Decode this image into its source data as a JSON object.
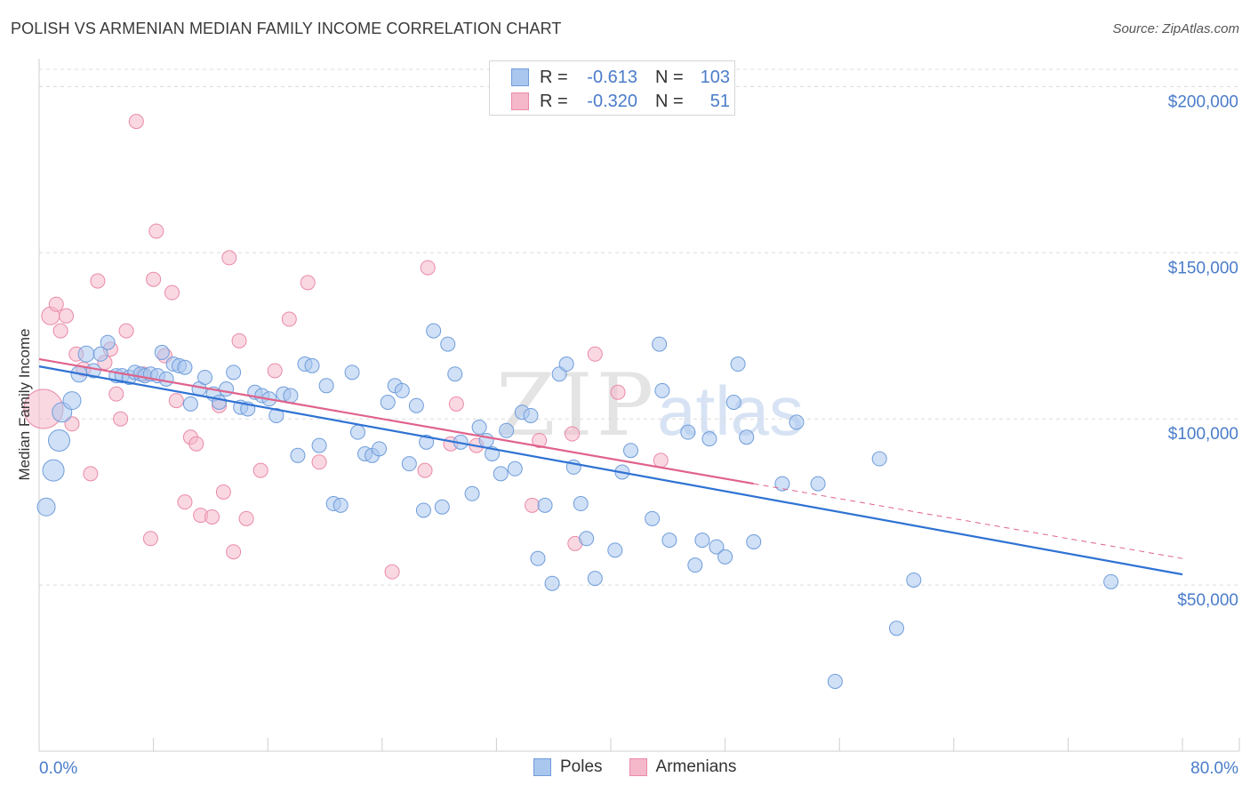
{
  "title": "POLISH VS ARMENIAN MEDIAN FAMILY INCOME CORRELATION CHART",
  "source": "Source: ZipAtlas.com",
  "watermark": {
    "zip": "ZIP",
    "atlas": "atlas"
  },
  "legend": {
    "rows": [
      {
        "r_label": "R =",
        "r_value": "-0.613",
        "n_label": "N =",
        "n_value": "103"
      },
      {
        "r_label": "R =",
        "r_value": "-0.320",
        "n_label": "N =",
        "n_value": "51"
      }
    ]
  },
  "bottom_legend": {
    "poles": "Poles",
    "armenians": "Armenians"
  },
  "colors": {
    "poles_fill": "#a9c6ee",
    "poles_stroke": "#6f9ddb",
    "poles_line": "#2f72d4",
    "armenians_fill": "#f5b8cb",
    "armenians_stroke": "#e98aa8",
    "armenians_line": "#e0628b",
    "tick_label": "#4a7cc9",
    "grid": "#dcdcdc"
  },
  "chart_data": {
    "type": "scatter",
    "title": "POLISH VS ARMENIAN MEDIAN FAMILY INCOME CORRELATION CHART",
    "xlabel": "",
    "ylabel": "Median Family Income",
    "xlim": [
      0,
      80
    ],
    "ylim": [
      0,
      210000
    ],
    "x_tick_labels": [
      "0.0%",
      "80.0%"
    ],
    "y_ticks": [
      50000,
      100000,
      150000,
      200000
    ],
    "y_tick_labels": [
      "$50,000",
      "$100,000",
      "$150,000",
      "$200,000"
    ],
    "grid": "horizontal dashed",
    "legend_position": "top-center",
    "series": [
      {
        "name": "Poles",
        "trend": {
          "x": [
            0,
            80
          ],
          "y": [
            115800,
            53200
          ]
        },
        "points": [
          {
            "x": 0.5,
            "y": 73500,
            "s": 10
          },
          {
            "x": 1.0,
            "y": 84500,
            "s": 12
          },
          {
            "x": 1.4,
            "y": 93500,
            "s": 12
          },
          {
            "x": 1.6,
            "y": 102000,
            "s": 11
          },
          {
            "x": 2.3,
            "y": 105500,
            "s": 10
          },
          {
            "x": 2.8,
            "y": 113500,
            "s": 9
          },
          {
            "x": 3.3,
            "y": 119500,
            "s": 9
          },
          {
            "x": 3.8,
            "y": 114500,
            "s": 8
          },
          {
            "x": 4.3,
            "y": 119500,
            "s": 8
          },
          {
            "x": 4.8,
            "y": 123000,
            "s": 8
          },
          {
            "x": 5.4,
            "y": 113000,
            "s": 8
          },
          {
            "x": 5.8,
            "y": 113000,
            "s": 8
          },
          {
            "x": 6.3,
            "y": 112500,
            "s": 8
          },
          {
            "x": 6.7,
            "y": 114000,
            "s": 8
          },
          {
            "x": 7.1,
            "y": 113500,
            "s": 8
          },
          {
            "x": 7.4,
            "y": 113000,
            "s": 8
          },
          {
            "x": 7.8,
            "y": 113500,
            "s": 8
          },
          {
            "x": 8.3,
            "y": 113000,
            "s": 8
          },
          {
            "x": 8.6,
            "y": 120000,
            "s": 8
          },
          {
            "x": 8.9,
            "y": 112000,
            "s": 8
          },
          {
            "x": 9.4,
            "y": 116500,
            "s": 8
          },
          {
            "x": 9.8,
            "y": 116000,
            "s": 8
          },
          {
            "x": 10.2,
            "y": 115500,
            "s": 8
          },
          {
            "x": 10.6,
            "y": 104500,
            "s": 8
          },
          {
            "x": 11.2,
            "y": 109000,
            "s": 8
          },
          {
            "x": 11.6,
            "y": 112500,
            "s": 8
          },
          {
            "x": 12.2,
            "y": 107500,
            "s": 8
          },
          {
            "x": 12.6,
            "y": 105000,
            "s": 8
          },
          {
            "x": 13.1,
            "y": 109000,
            "s": 8
          },
          {
            "x": 13.6,
            "y": 114000,
            "s": 8
          },
          {
            "x": 14.1,
            "y": 103500,
            "s": 8
          },
          {
            "x": 14.6,
            "y": 103000,
            "s": 8
          },
          {
            "x": 15.1,
            "y": 108000,
            "s": 8
          },
          {
            "x": 15.6,
            "y": 107000,
            "s": 8
          },
          {
            "x": 16.1,
            "y": 106000,
            "s": 8
          },
          {
            "x": 16.6,
            "y": 101000,
            "s": 8
          },
          {
            "x": 17.1,
            "y": 107500,
            "s": 8
          },
          {
            "x": 17.6,
            "y": 107000,
            "s": 8
          },
          {
            "x": 18.1,
            "y": 89000,
            "s": 8
          },
          {
            "x": 18.6,
            "y": 116500,
            "s": 8
          },
          {
            "x": 19.1,
            "y": 116000,
            "s": 8
          },
          {
            "x": 19.6,
            "y": 92000,
            "s": 8
          },
          {
            "x": 20.1,
            "y": 110000,
            "s": 8
          },
          {
            "x": 20.6,
            "y": 74500,
            "s": 8
          },
          {
            "x": 21.1,
            "y": 74000,
            "s": 8
          },
          {
            "x": 21.9,
            "y": 114000,
            "s": 8
          },
          {
            "x": 22.3,
            "y": 96000,
            "s": 8
          },
          {
            "x": 22.8,
            "y": 89500,
            "s": 8
          },
          {
            "x": 23.3,
            "y": 89000,
            "s": 8
          },
          {
            "x": 23.8,
            "y": 91000,
            "s": 8
          },
          {
            "x": 24.4,
            "y": 105000,
            "s": 8
          },
          {
            "x": 24.9,
            "y": 110000,
            "s": 8
          },
          {
            "x": 25.4,
            "y": 108500,
            "s": 8
          },
          {
            "x": 25.9,
            "y": 86500,
            "s": 8
          },
          {
            "x": 26.4,
            "y": 104000,
            "s": 8
          },
          {
            "x": 26.9,
            "y": 72500,
            "s": 8
          },
          {
            "x": 27.1,
            "y": 93000,
            "s": 8
          },
          {
            "x": 27.6,
            "y": 126500,
            "s": 8
          },
          {
            "x": 28.2,
            "y": 73500,
            "s": 8
          },
          {
            "x": 28.6,
            "y": 122500,
            "s": 8
          },
          {
            "x": 29.1,
            "y": 113500,
            "s": 8
          },
          {
            "x": 29.5,
            "y": 93000,
            "s": 8
          },
          {
            "x": 30.3,
            "y": 77500,
            "s": 8
          },
          {
            "x": 30.8,
            "y": 97500,
            "s": 8
          },
          {
            "x": 31.3,
            "y": 93500,
            "s": 8
          },
          {
            "x": 31.7,
            "y": 89500,
            "s": 8
          },
          {
            "x": 32.3,
            "y": 83500,
            "s": 8
          },
          {
            "x": 32.7,
            "y": 96500,
            "s": 8
          },
          {
            "x": 33.3,
            "y": 85000,
            "s": 8
          },
          {
            "x": 33.8,
            "y": 102000,
            "s": 8
          },
          {
            "x": 34.4,
            "y": 101000,
            "s": 8
          },
          {
            "x": 34.9,
            "y": 58000,
            "s": 8
          },
          {
            "x": 35.4,
            "y": 74000,
            "s": 8
          },
          {
            "x": 35.9,
            "y": 50500,
            "s": 8
          },
          {
            "x": 36.4,
            "y": 113500,
            "s": 8
          },
          {
            "x": 36.9,
            "y": 116500,
            "s": 8
          },
          {
            "x": 37.4,
            "y": 85500,
            "s": 8
          },
          {
            "x": 37.9,
            "y": 74500,
            "s": 8
          },
          {
            "x": 38.3,
            "y": 64000,
            "s": 8
          },
          {
            "x": 38.9,
            "y": 52000,
            "s": 8
          },
          {
            "x": 40.3,
            "y": 60500,
            "s": 8
          },
          {
            "x": 40.8,
            "y": 84000,
            "s": 8
          },
          {
            "x": 41.4,
            "y": 90500,
            "s": 8
          },
          {
            "x": 42.9,
            "y": 70000,
            "s": 8
          },
          {
            "x": 43.4,
            "y": 122500,
            "s": 8
          },
          {
            "x": 43.6,
            "y": 108500,
            "s": 8
          },
          {
            "x": 44.1,
            "y": 63500,
            "s": 8
          },
          {
            "x": 45.4,
            "y": 96000,
            "s": 8
          },
          {
            "x": 45.9,
            "y": 56000,
            "s": 8
          },
          {
            "x": 46.4,
            "y": 63500,
            "s": 8
          },
          {
            "x": 46.9,
            "y": 94000,
            "s": 8
          },
          {
            "x": 47.4,
            "y": 61500,
            "s": 8
          },
          {
            "x": 48.0,
            "y": 58500,
            "s": 8
          },
          {
            "x": 48.6,
            "y": 105000,
            "s": 8
          },
          {
            "x": 48.9,
            "y": 116500,
            "s": 8
          },
          {
            "x": 49.5,
            "y": 94500,
            "s": 8
          },
          {
            "x": 50.0,
            "y": 63000,
            "s": 8
          },
          {
            "x": 52.0,
            "y": 80500,
            "s": 8
          },
          {
            "x": 53.0,
            "y": 99000,
            "s": 8
          },
          {
            "x": 54.5,
            "y": 80500,
            "s": 8
          },
          {
            "x": 55.7,
            "y": 21000,
            "s": 8
          },
          {
            "x": 58.8,
            "y": 88000,
            "s": 8
          },
          {
            "x": 60.0,
            "y": 37000,
            "s": 8
          },
          {
            "x": 61.2,
            "y": 51500,
            "s": 8
          },
          {
            "x": 75.0,
            "y": 51000,
            "s": 8
          }
        ]
      },
      {
        "name": "Armenians",
        "trend": {
          "x": [
            0,
            50
          ],
          "y": [
            118000,
            80500
          ]
        },
        "trend_dashed": {
          "x": [
            50,
            80
          ],
          "y": [
            80500,
            58000
          ]
        },
        "points": [
          {
            "x": 0.3,
            "y": 103000,
            "s": 22
          },
          {
            "x": 0.8,
            "y": 131000,
            "s": 10
          },
          {
            "x": 1.2,
            "y": 134500,
            "s": 8
          },
          {
            "x": 1.5,
            "y": 126500,
            "s": 8
          },
          {
            "x": 1.9,
            "y": 131000,
            "s": 8
          },
          {
            "x": 2.3,
            "y": 98500,
            "s": 8
          },
          {
            "x": 2.6,
            "y": 119500,
            "s": 8
          },
          {
            "x": 3.1,
            "y": 115000,
            "s": 8
          },
          {
            "x": 3.6,
            "y": 83500,
            "s": 8
          },
          {
            "x": 4.1,
            "y": 141500,
            "s": 8
          },
          {
            "x": 4.6,
            "y": 117000,
            "s": 8
          },
          {
            "x": 5.0,
            "y": 121000,
            "s": 8
          },
          {
            "x": 5.4,
            "y": 107500,
            "s": 8
          },
          {
            "x": 5.7,
            "y": 100000,
            "s": 8
          },
          {
            "x": 6.1,
            "y": 126500,
            "s": 8
          },
          {
            "x": 6.8,
            "y": 189500,
            "s": 8
          },
          {
            "x": 7.3,
            "y": 113500,
            "s": 8
          },
          {
            "x": 7.8,
            "y": 64000,
            "s": 8
          },
          {
            "x": 8.0,
            "y": 142000,
            "s": 8
          },
          {
            "x": 8.2,
            "y": 156500,
            "s": 8
          },
          {
            "x": 8.8,
            "y": 119000,
            "s": 8
          },
          {
            "x": 9.3,
            "y": 138000,
            "s": 8
          },
          {
            "x": 9.6,
            "y": 105500,
            "s": 8
          },
          {
            "x": 10.2,
            "y": 75000,
            "s": 8
          },
          {
            "x": 10.6,
            "y": 94500,
            "s": 8
          },
          {
            "x": 11.0,
            "y": 92500,
            "s": 8
          },
          {
            "x": 11.3,
            "y": 71000,
            "s": 8
          },
          {
            "x": 12.1,
            "y": 70500,
            "s": 8
          },
          {
            "x": 12.6,
            "y": 104000,
            "s": 8
          },
          {
            "x": 12.9,
            "y": 78000,
            "s": 8
          },
          {
            "x": 13.3,
            "y": 148500,
            "s": 8
          },
          {
            "x": 13.6,
            "y": 60000,
            "s": 8
          },
          {
            "x": 14.0,
            "y": 123500,
            "s": 8
          },
          {
            "x": 14.5,
            "y": 70000,
            "s": 8
          },
          {
            "x": 15.5,
            "y": 84500,
            "s": 8
          },
          {
            "x": 16.5,
            "y": 114500,
            "s": 8
          },
          {
            "x": 17.5,
            "y": 130000,
            "s": 8
          },
          {
            "x": 18.8,
            "y": 141000,
            "s": 8
          },
          {
            "x": 19.6,
            "y": 87000,
            "s": 8
          },
          {
            "x": 24.7,
            "y": 54000,
            "s": 8
          },
          {
            "x": 27.2,
            "y": 145500,
            "s": 8
          },
          {
            "x": 27.0,
            "y": 84500,
            "s": 8
          },
          {
            "x": 28.8,
            "y": 92500,
            "s": 8
          },
          {
            "x": 29.2,
            "y": 104500,
            "s": 8
          },
          {
            "x": 30.6,
            "y": 92000,
            "s": 8
          },
          {
            "x": 34.5,
            "y": 74000,
            "s": 8
          },
          {
            "x": 35.0,
            "y": 93500,
            "s": 8
          },
          {
            "x": 37.3,
            "y": 95500,
            "s": 8
          },
          {
            "x": 37.5,
            "y": 62500,
            "s": 8
          },
          {
            "x": 38.9,
            "y": 119500,
            "s": 8
          },
          {
            "x": 40.5,
            "y": 108000,
            "s": 8
          },
          {
            "x": 43.5,
            "y": 87500,
            "s": 8
          }
        ]
      }
    ]
  }
}
